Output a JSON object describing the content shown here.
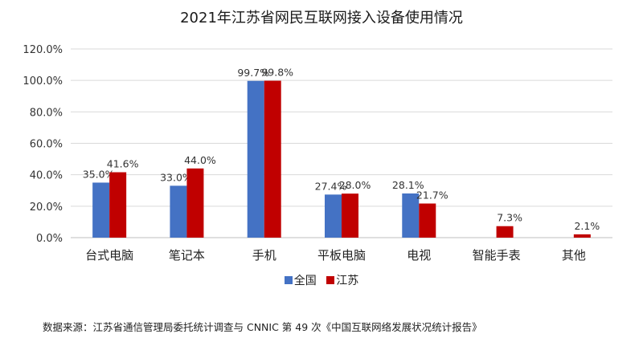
{
  "title": "2021年江苏省网民互联网接入设备使用情况",
  "source": "数据来源：江苏省通信管理局委托统计调查与 CNNIC 第 49 次《中国互联网络发展状况统计报告》",
  "colors": {
    "series_0": "#4472C4",
    "series_1": "#C00000",
    "grid": "#d9d9d9",
    "axis": "#bfbfbf"
  },
  "chart_data": {
    "type": "bar",
    "title": "2021年江苏省网民互联网接入设备使用情况",
    "categories": [
      "台式电脑",
      "笔记本",
      "手机",
      "平板电脑",
      "电视",
      "智能手表",
      "其他"
    ],
    "series": [
      {
        "name": "全国",
        "values": [
          35.0,
          33.0,
          99.7,
          27.4,
          28.1,
          null,
          null
        ],
        "labels": [
          "35.0%",
          "33.0%",
          "99.7%",
          "27.4%",
          "28.1%",
          null,
          null
        ]
      },
      {
        "name": "江苏",
        "values": [
          41.6,
          44.0,
          99.8,
          28.0,
          21.7,
          7.3,
          2.1
        ],
        "labels": [
          "41.6%",
          "44.0%",
          "99.8%",
          "28.0%",
          "21.7%",
          "7.3%",
          "2.1%"
        ]
      }
    ],
    "ylim": [
      0,
      120
    ],
    "yticks": [
      "0.0%",
      "20.0%",
      "40.0%",
      "60.0%",
      "80.0%",
      "100.0%",
      "120.0%"
    ],
    "grid": true,
    "legend": "bottom"
  }
}
